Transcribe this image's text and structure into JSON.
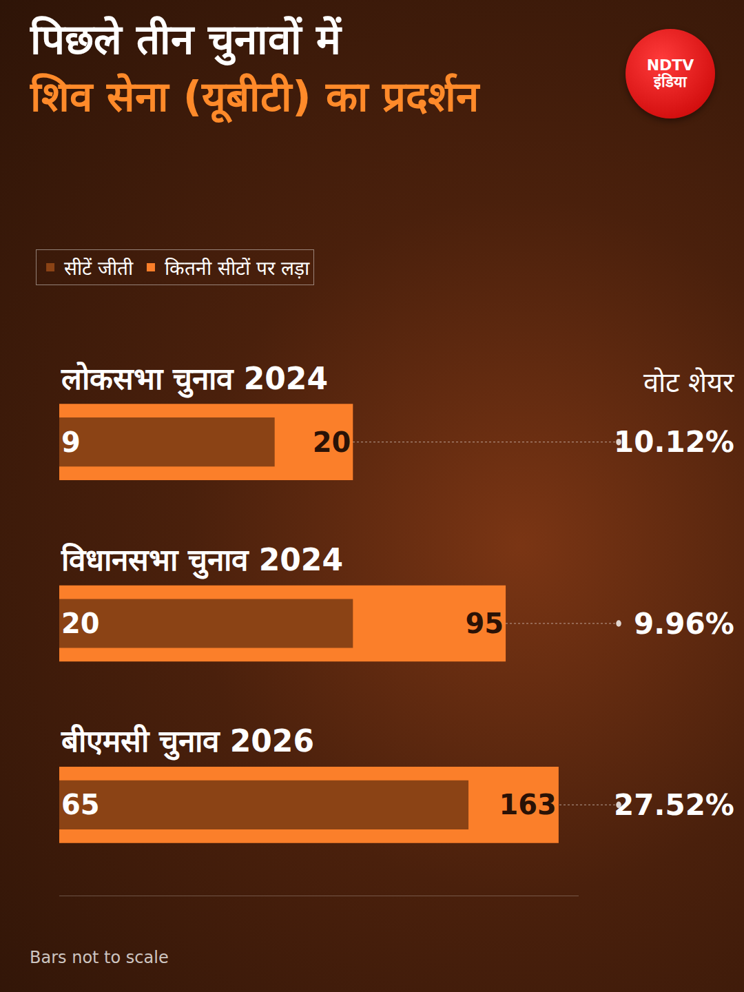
{
  "chart_data": {
    "type": "bar",
    "orientation": "horizontal",
    "title": "पिछले तीन चुनावों में",
    "subtitle": "शिव सेना (यूबीटी) का प्रदर्शन",
    "logo": "NDTV इंडिया",
    "categories": [
      "लोकसभा चुनाव 2024",
      "विधानसभा चुनाव 2024",
      "बीएमसी चुनाव 2026"
    ],
    "series": [
      {
        "name": "कितनी सीटों पर लड़ा",
        "color": "#fb7f2a",
        "values": [
          20,
          95,
          163
        ]
      },
      {
        "name": "सीटें जीती",
        "color": "#8b4315",
        "values": [
          9,
          20,
          65
        ]
      }
    ],
    "vote_share_title": "वोट शेयर",
    "vote_share_labels": [
      "10.12%",
      "9.96%",
      "27.52%"
    ],
    "note": "Bars not to scale",
    "xlim": [
      1,
      200
    ],
    "log": "x",
    "tick_labels": false,
    "grid": false,
    "data_labels": true,
    "legend": "top-left"
  }
}
